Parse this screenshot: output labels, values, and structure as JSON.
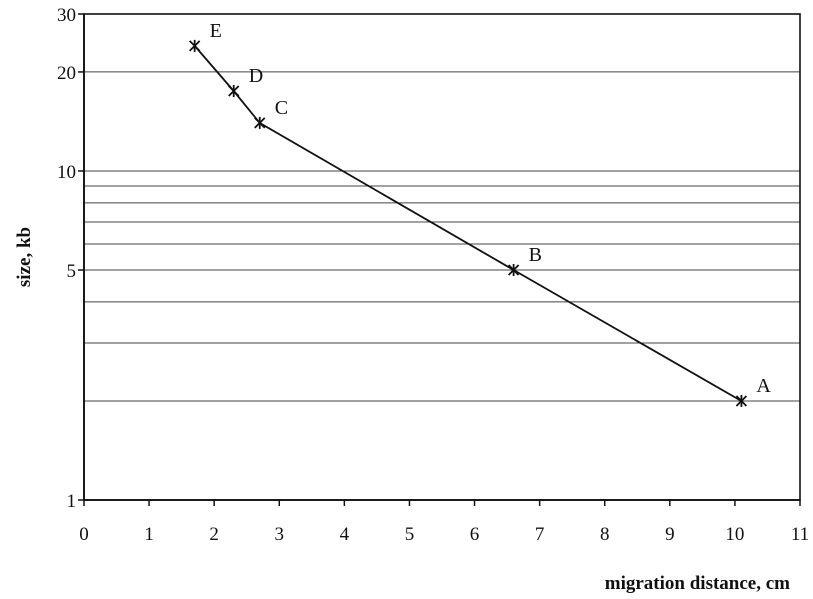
{
  "chart_data": {
    "type": "line",
    "title": "",
    "xlabel": "migration distance, cm",
    "ylabel": "size, kb",
    "x_scale": "linear",
    "y_scale": "log",
    "xlim": [
      0,
      11
    ],
    "ylim": [
      1,
      30
    ],
    "x_ticks": [
      0,
      1,
      2,
      3,
      4,
      5,
      6,
      7,
      8,
      9,
      10,
      11
    ],
    "x_tick_labels": [
      "0",
      "1",
      "2",
      "3",
      "4",
      "5",
      "6",
      "7",
      "8",
      "9",
      "10",
      "11"
    ],
    "y_ticks": [
      1,
      5,
      10,
      20,
      30
    ],
    "y_tick_labels": [
      "1",
      "5",
      "10",
      "20",
      "30"
    ],
    "y_gridlines": [
      2,
      3,
      4,
      5,
      6,
      7,
      8,
      9,
      10,
      20
    ],
    "grid": "horizontal",
    "marker": "asterisk",
    "series": [
      {
        "points": [
          {
            "label": "E",
            "x": 1.7,
            "y": 24
          },
          {
            "label": "D",
            "x": 2.3,
            "y": 17.5
          },
          {
            "label": "C",
            "x": 2.7,
            "y": 14
          },
          {
            "label": "B",
            "x": 6.6,
            "y": 5
          },
          {
            "label": "A",
            "x": 10.1,
            "y": 2
          }
        ]
      }
    ]
  }
}
